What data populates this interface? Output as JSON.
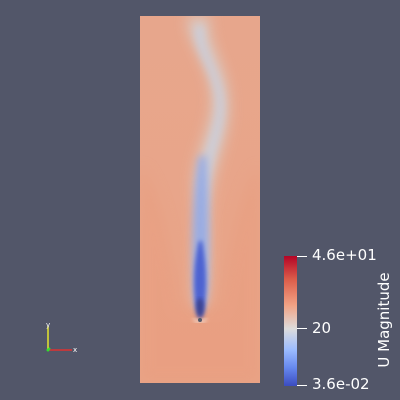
{
  "render_view": {
    "background_color": "#525669",
    "field_variable": "U Magnitude"
  },
  "color_legend": {
    "title": "U Magnitude",
    "max_label": "4.6e+01",
    "mid_label": "20",
    "min_label": "3.6e-02",
    "colormap": "Cool to Warm",
    "high_color": "#b40426",
    "mid_color": "#dddcdc",
    "low_color": "#3b4cc0"
  },
  "orientation_axes": {
    "x_label": "x",
    "y_label": "y",
    "x_color": "#ff3030",
    "y_color": "#ffff30",
    "z_color": "#30ff30"
  }
}
